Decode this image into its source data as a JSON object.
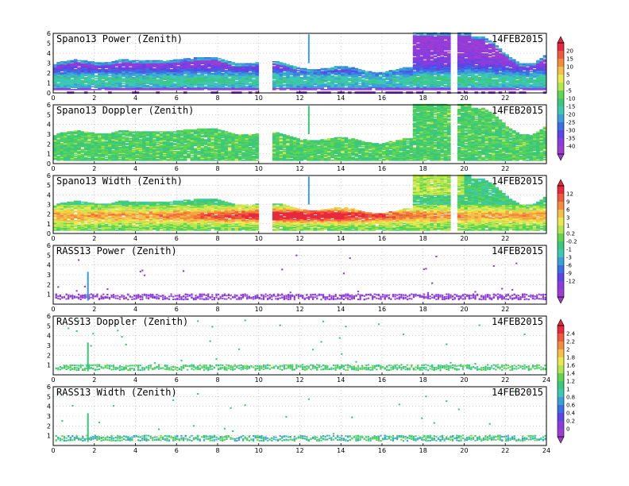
{
  "chart_data": [
    {
      "type": "heatmap",
      "title": "Spano13 Power (Zenith)",
      "date": "14FEB2015",
      "xlim": [
        0,
        24
      ],
      "ylim": [
        0,
        6
      ],
      "xticks": [
        "0",
        "2",
        "4",
        "6",
        "8",
        "10",
        "12",
        "14",
        "16",
        "18",
        "20",
        "22"
      ],
      "yticks": [
        "0",
        "1",
        "2",
        "3",
        "4",
        "5",
        "6"
      ],
      "colorbar": "A"
    },
    {
      "type": "heatmap",
      "title": "Spano13 Doppler (Zenith)",
      "date": "14FEB2015",
      "xlim": [
        0,
        24
      ],
      "ylim": [
        0,
        6
      ],
      "xticks": [
        "0",
        "2",
        "4",
        "6",
        "8",
        "10",
        "12",
        "14",
        "16",
        "18",
        "20",
        "22"
      ],
      "yticks": [
        "0",
        "1",
        "2",
        "3",
        "4",
        "5",
        "6"
      ],
      "colorbar": "A"
    },
    {
      "type": "heatmap",
      "title": "Spano13 Width (Zenith)",
      "date": "14FEB2015",
      "xlim": [
        0,
        24
      ],
      "ylim": [
        0,
        6
      ],
      "xticks": [
        "0",
        "2",
        "4",
        "6",
        "8",
        "10",
        "12",
        "14",
        "16",
        "18",
        "20",
        "22"
      ],
      "yticks": [
        "0",
        "1",
        "2",
        "3",
        "4",
        "5",
        "6"
      ],
      "colorbar": "B"
    },
    {
      "type": "heatmap",
      "title": "RASS13 Power (Zenith)",
      "date": "14FEB2015",
      "xlim": [
        0,
        24
      ],
      "ylim": [
        0,
        6
      ],
      "xticks": [
        "0",
        "2",
        "4",
        "6",
        "8",
        "10",
        "12",
        "14",
        "16",
        "18",
        "20",
        "22"
      ],
      "yticks": [
        "1",
        "2",
        "3",
        "4",
        "5",
        "6"
      ],
      "colorbar": "B"
    },
    {
      "type": "heatmap",
      "title": "RASS13 Doppler (Zenith)",
      "date": "14FEB2015",
      "xlim": [
        0,
        24
      ],
      "ylim": [
        0,
        6
      ],
      "xticks": [
        "0",
        "2",
        "4",
        "6",
        "8",
        "10",
        "12",
        "14",
        "16",
        "18",
        "20",
        "22",
        "24"
      ],
      "yticks": [
        "1",
        "2",
        "3",
        "4",
        "5",
        "6"
      ],
      "colorbar": "C"
    },
    {
      "type": "heatmap",
      "title": "RASS13 Width (Zenith)",
      "date": "14FEB2015",
      "xlim": [
        0,
        24
      ],
      "ylim": [
        0,
        6
      ],
      "xticks": [
        "0",
        "2",
        "4",
        "6",
        "8",
        "10",
        "12",
        "14",
        "16",
        "18",
        "20",
        "22",
        "24"
      ],
      "yticks": [
        "1",
        "2",
        "3",
        "4",
        "5",
        "6"
      ],
      "colorbar": "C"
    }
  ],
  "colorbars": {
    "A": {
      "labels": [
        "20",
        "15",
        "10",
        "5",
        "0",
        "-5",
        "-10",
        "-15",
        "-20",
        "-25",
        "-30",
        "-35",
        "-40"
      ],
      "colors": [
        "#e8283c",
        "#f05a3c",
        "#f58c3c",
        "#f5c04a",
        "#eaea50",
        "#b4e650",
        "#60d650",
        "#3cc878",
        "#3cc8b4",
        "#3ca0d8",
        "#3c6ee6",
        "#5a46e6",
        "#8c3cdc",
        "#a03cd2"
      ]
    },
    "B": {
      "labels": [
        "12",
        "9",
        "6",
        "3",
        "1",
        "0.2",
        "-0.2",
        "-1",
        "-3",
        "-6",
        "-9",
        "-12"
      ],
      "colors": [
        "#e8283c",
        "#f05a3c",
        "#f58c3c",
        "#f5c04a",
        "#eaea50",
        "#b4e650",
        "#60d650",
        "#3cc878",
        "#3cc8b4",
        "#3ca0d8",
        "#3c6ee6",
        "#5a46e6",
        "#8c3cdc",
        "#a03cd2"
      ]
    },
    "C": {
      "labels": [
        "2.4",
        "2.2",
        "2",
        "1.8",
        "1.6",
        "1.4",
        "1.2",
        "1",
        "0.8",
        "0.6",
        "0.4",
        "0.2",
        "0"
      ],
      "colors": [
        "#e8283c",
        "#f05a3c",
        "#f58c3c",
        "#f5c04a",
        "#eaea50",
        "#b4e650",
        "#60d650",
        "#3cc878",
        "#3cc8b4",
        "#3ca0d8",
        "#3c6ee6",
        "#5a46e6",
        "#8c3cdc",
        "#a03cd2"
      ]
    }
  }
}
